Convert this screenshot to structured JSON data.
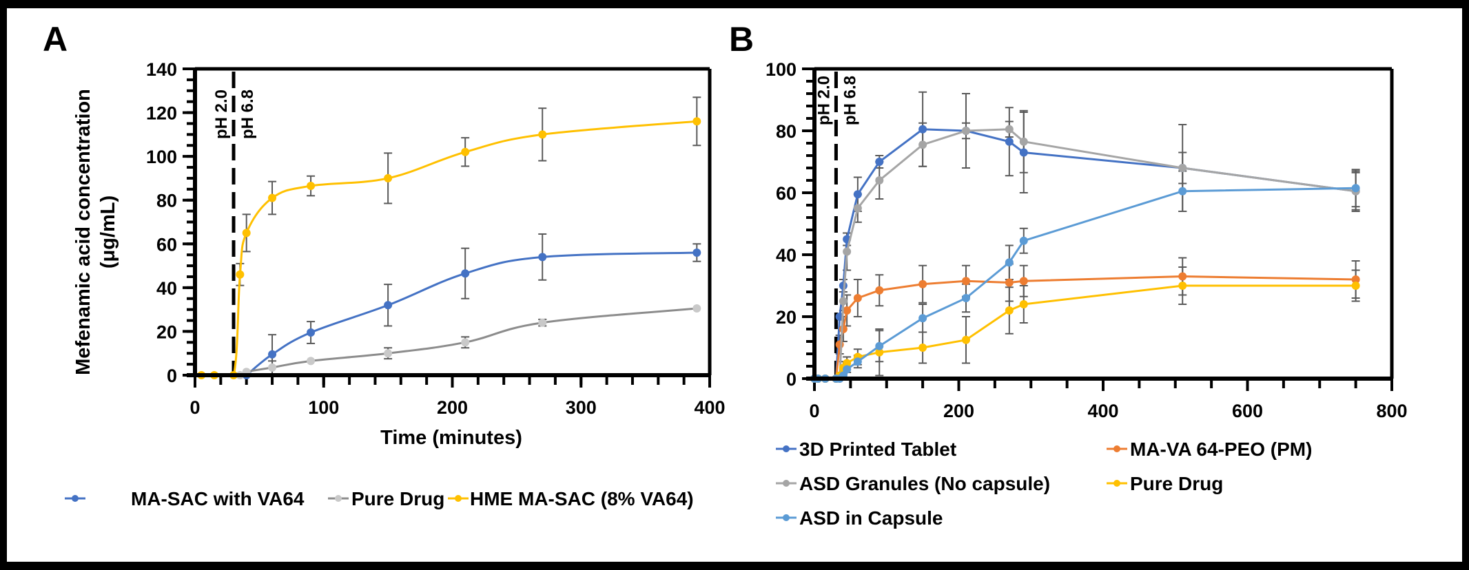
{
  "figure": {
    "panels": [
      {
        "letter": "A"
      },
      {
        "letter": "B"
      }
    ]
  },
  "chart_data": [
    {
      "id": "A",
      "type": "line",
      "title": "",
      "panel_label": "A",
      "xlabel": "Time (minutes)",
      "ylabel": "Mefenamic acid concentration (μg/mL)",
      "ylabel_lines": [
        "Mefenamic acid concentration",
        "(μg/mL)"
      ],
      "xlim": [
        0,
        400
      ],
      "ylim": [
        0,
        140
      ],
      "xticks": [
        0,
        100,
        200,
        300,
        400
      ],
      "yticks": [
        0,
        20,
        40,
        60,
        80,
        100,
        120,
        140
      ],
      "x_minor_step": 20,
      "y_minor_step": 5,
      "grid": false,
      "smooth": true,
      "ph_change": {
        "x": 30,
        "left_label": "pH 2.0",
        "right_label": "pH 6.8"
      },
      "legend_position": "bottom",
      "series": [
        {
          "name": "MA-SAC with VA64",
          "color": "#4472C4",
          "marker_color": "#4472C4",
          "x": [
            40,
            60,
            90,
            150,
            210,
            270,
            390
          ],
          "y": [
            0,
            9.5,
            19.5,
            32,
            46.5,
            54,
            56
          ],
          "err": [
            0,
            9,
            5,
            9.5,
            11.5,
            10.5,
            4
          ]
        },
        {
          "name": "Pure Drug",
          "color": "#8C8C8C",
          "marker_color": "#C9C9C9",
          "x": [
            35,
            40,
            60,
            90,
            150,
            210,
            270,
            390
          ],
          "y": [
            0,
            1.5,
            3.5,
            6.5,
            10,
            15,
            24,
            30.5
          ],
          "err": [
            0,
            0,
            3,
            0,
            2.5,
            2.5,
            1.5,
            0
          ]
        },
        {
          "name": "HME MA-SAC (8% VA64)",
          "color": "#FFC000",
          "marker_color": "#FFC000",
          "x": [
            5,
            15,
            30,
            35,
            40,
            60,
            90,
            150,
            210,
            270,
            390
          ],
          "y": [
            0,
            0,
            0,
            46,
            65,
            81,
            86.5,
            90,
            102,
            110,
            116
          ],
          "err": [
            0,
            0,
            0,
            5,
            8.5,
            7.5,
            4.5,
            11.5,
            6.5,
            12,
            11
          ]
        }
      ]
    },
    {
      "id": "B",
      "type": "line",
      "title": "",
      "panel_label": "B",
      "xlabel": "",
      "ylabel": "",
      "xlim": [
        0,
        800
      ],
      "ylim": [
        0,
        100
      ],
      "xticks": [
        0,
        200,
        400,
        600,
        800
      ],
      "yticks": [
        0,
        20,
        40,
        60,
        80,
        100
      ],
      "x_minor_step": 50,
      "y_minor_step": 4,
      "grid": false,
      "smooth": false,
      "ph_change": {
        "x": 30,
        "left_label": "pH 2.0",
        "right_label": "pH 6.8"
      },
      "legend_position": "bottom",
      "series": [
        {
          "name": "3D Printed Tablet",
          "color": "#4472C4",
          "x": [
            0,
            5,
            15,
            30,
            35,
            40,
            45,
            60,
            90,
            150,
            210,
            270,
            290,
            510,
            750
          ],
          "y": [
            0,
            0,
            0,
            0,
            20,
            30,
            45,
            59.5,
            70,
            80.5,
            80,
            76.5,
            73,
            68,
            60.5
          ],
          "err": [
            0,
            0,
            0,
            0,
            0,
            2,
            2,
            5.5,
            2,
            12,
            12,
            11,
            13,
            14,
            6.5
          ]
        },
        {
          "name": "MA-VA 64-PEO (PM)",
          "color": "#ED7D31",
          "x": [
            0,
            5,
            15,
            30,
            35,
            40,
            45,
            60,
            90,
            150,
            210,
            270,
            290,
            510,
            750
          ],
          "y": [
            0,
            0,
            0,
            0,
            11,
            16,
            22,
            26,
            28.5,
            30.5,
            31.5,
            31,
            31.5,
            33,
            32
          ],
          "err": [
            0,
            0,
            0,
            0,
            3,
            4,
            5,
            6,
            5,
            6,
            5,
            6,
            5,
            6,
            6
          ]
        },
        {
          "name": "ASD Granules (No capsule)",
          "color": "#A5A5A5",
          "x": [
            0,
            5,
            15,
            30,
            35,
            40,
            45,
            60,
            90,
            150,
            210,
            270,
            290,
            510,
            750
          ],
          "y": [
            0,
            0,
            0,
            0,
            0,
            25,
            41,
            55,
            64,
            75.5,
            80,
            80.5,
            76.5,
            68,
            60.5
          ],
          "err": [
            0,
            0,
            0,
            0,
            0,
            3,
            6,
            4.5,
            6,
            7,
            2.5,
            2.5,
            10,
            5,
            6
          ]
        },
        {
          "name": "Pure Drug",
          "color": "#FFC000",
          "x": [
            0,
            5,
            15,
            30,
            35,
            40,
            45,
            60,
            90,
            150,
            210,
            270,
            290,
            510,
            750
          ],
          "y": [
            0,
            0,
            0,
            0,
            1,
            3.5,
            5,
            7,
            8.5,
            10,
            12.5,
            22,
            24,
            30,
            30
          ],
          "err": [
            0,
            0,
            0,
            0,
            1,
            2,
            2,
            2.5,
            7.5,
            5,
            7.5,
            7.5,
            6,
            6,
            5
          ]
        },
        {
          "name": "ASD in Capsule",
          "color": "#5B9BD5",
          "x": [
            0,
            5,
            15,
            30,
            35,
            40,
            45,
            60,
            90,
            150,
            210,
            270,
            290,
            510,
            750
          ],
          "y": [
            0,
            0,
            0,
            0,
            0,
            1,
            3,
            5.5,
            10.5,
            19.5,
            26,
            37.5,
            44.5,
            60.5,
            61.5
          ],
          "err": [
            0,
            0,
            0,
            0,
            0,
            0,
            1,
            2,
            5,
            4.5,
            4.5,
            5.5,
            4,
            6.5,
            6
          ]
        }
      ]
    }
  ]
}
